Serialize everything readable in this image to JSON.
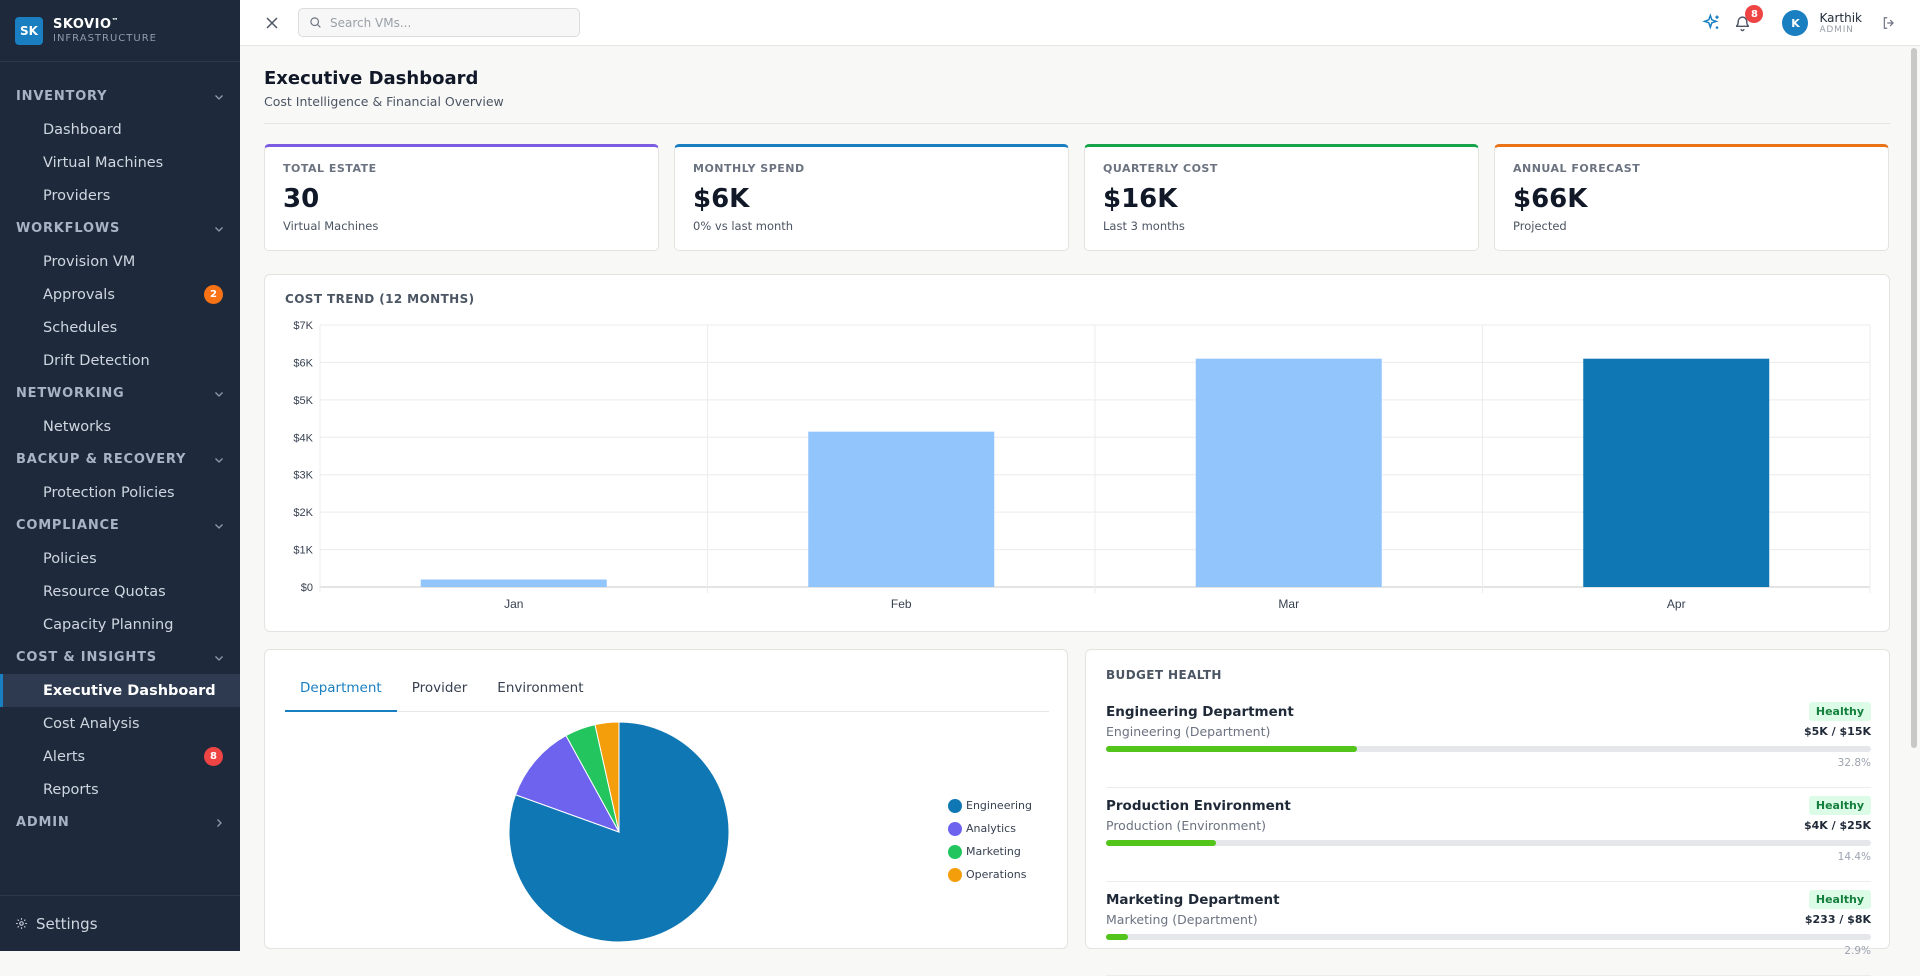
{
  "brand": {
    "logo": "SK",
    "name": "SKOVIO",
    "tm": "™",
    "subtitle": "INFRASTRUCTURE"
  },
  "sidebar": {
    "sections": [
      {
        "title": "INVENTORY",
        "expanded": true,
        "items": [
          {
            "label": "Dashboard"
          },
          {
            "label": "Virtual Machines"
          },
          {
            "label": "Providers"
          }
        ]
      },
      {
        "title": "WORKFLOWS",
        "expanded": true,
        "items": [
          {
            "label": "Provision VM"
          },
          {
            "label": "Approvals",
            "badge": "2",
            "badge_color": "#f97316"
          },
          {
            "label": "Schedules"
          },
          {
            "label": "Drift Detection"
          }
        ]
      },
      {
        "title": "NETWORKING",
        "expanded": true,
        "items": [
          {
            "label": "Networks"
          }
        ]
      },
      {
        "title": "BACKUP & RECOVERY",
        "expanded": true,
        "items": [
          {
            "label": "Protection Policies"
          }
        ]
      },
      {
        "title": "COMPLIANCE",
        "expanded": true,
        "items": [
          {
            "label": "Policies"
          },
          {
            "label": "Resource Quotas"
          },
          {
            "label": "Capacity Planning"
          }
        ]
      },
      {
        "title": "COST & INSIGHTS",
        "expanded": true,
        "items": [
          {
            "label": "Executive Dashboard",
            "active": true
          },
          {
            "label": "Cost Analysis"
          },
          {
            "label": "Alerts",
            "badge": "8",
            "badge_color": "#ef4444"
          },
          {
            "label": "Reports"
          }
        ]
      },
      {
        "title": "ADMIN",
        "expanded": false,
        "items": []
      }
    ],
    "footer_label": "Settings"
  },
  "topbar": {
    "search_placeholder": "Search VMs...",
    "notification_count": "8",
    "user_initial": "K",
    "user_name": "Karthik",
    "user_role": "ADMIN"
  },
  "page": {
    "title": "Executive Dashboard",
    "subtitle": "Cost Intelligence & Financial Overview"
  },
  "kpis": [
    {
      "label": "TOTAL ESTATE",
      "value": "30",
      "sub": "Virtual Machines",
      "color": "#7c5ce0"
    },
    {
      "label": "MONTHLY SPEND",
      "value": "$6K",
      "sub": "0% vs last month",
      "color": "#1a7fc0"
    },
    {
      "label": "QUARTERLY COST",
      "value": "$16K",
      "sub": "Last 3 months",
      "color": "#16a34a"
    },
    {
      "label": "ANNUAL FORECAST",
      "value": "$66K",
      "sub": "Projected",
      "color": "#ea7317"
    }
  ],
  "chart_data": [
    {
      "type": "bar",
      "title": "COST TREND (12 MONTHS)",
      "categories": [
        "Jan",
        "Feb",
        "Mar",
        "Apr"
      ],
      "values": [
        200,
        4150,
        6100,
        6100
      ],
      "highlight_index": 3,
      "bar_color": "#93c5fd",
      "highlight_color": "#0f77b4",
      "ylim": [
        0,
        7000
      ],
      "yticks": [
        "$0",
        "$1K",
        "$2K",
        "$3K",
        "$4K",
        "$5K",
        "$6K",
        "$7K"
      ],
      "grid": true
    },
    {
      "type": "pie",
      "labels": [
        "Engineering",
        "Analytics",
        "Marketing",
        "Operations"
      ],
      "values": [
        80.5,
        11.5,
        4.5,
        3.5
      ],
      "colors": [
        "#0f77b4",
        "#6d63ef",
        "#22c55e",
        "#f59e0b"
      ],
      "legend": "right"
    }
  ],
  "tabs": [
    {
      "label": "Department",
      "active": true
    },
    {
      "label": "Provider"
    },
    {
      "label": "Environment"
    }
  ],
  "budget": {
    "title": "BUDGET HEALTH",
    "items": [
      {
        "name": "Engineering Department",
        "status": "Healthy",
        "sub": "Engineering (Department)",
        "amount": "$5K / $15K",
        "pct": "32.8%",
        "fraction": 0.328
      },
      {
        "name": "Production Environment",
        "status": "Healthy",
        "sub": "Production (Environment)",
        "amount": "$4K / $25K",
        "pct": "14.4%",
        "fraction": 0.144
      },
      {
        "name": "Marketing Department",
        "status": "Healthy",
        "sub": "Marketing (Department)",
        "amount": "$233 / $8K",
        "pct": "2.9%",
        "fraction": 0.029
      }
    ]
  }
}
